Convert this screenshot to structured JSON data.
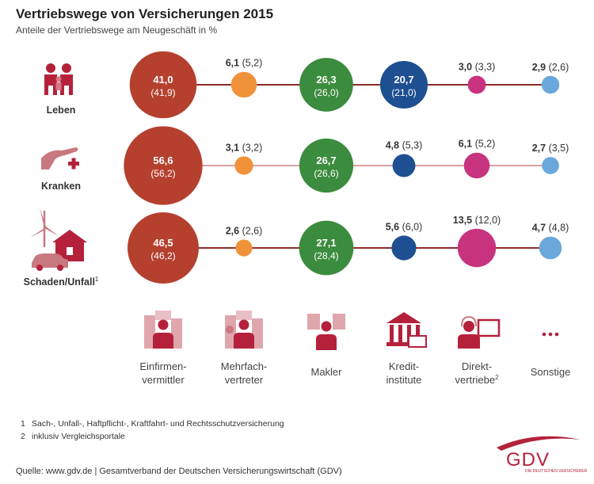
{
  "header": {
    "title": "Vertriebswege von Versicherungen 2015",
    "subtitle": "Anteile der Vertriebswege am Neugeschäft in %"
  },
  "chart_data": {
    "type": "bubble",
    "title": "Vertriebswege von Versicherungen 2015",
    "subtitle": "Anteile der Vertriebswege am Neugeschäft in %",
    "channels": [
      {
        "label": "Einfirmen-\nvermittler",
        "color": "#b5402e",
        "icon": "businesswoman-icon"
      },
      {
        "label": "Mehrfach-\nvertreter",
        "color": "#f0923a",
        "icon": "businessman-buildings-icon"
      },
      {
        "label": "Makler",
        "color": "#3b8c3e",
        "icon": "broker-documents-icon"
      },
      {
        "label": "Kredit-\ninstitute",
        "color": "#1d4f91",
        "icon": "bank-building-icon"
      },
      {
        "label": "Direkt-\nvertriebe",
        "sup": "2",
        "color": "#c7337f",
        "icon": "headset-agent-icon"
      },
      {
        "label": "Sonstige",
        "color": "#6aa8dc",
        "icon": "ellipsis-icon"
      }
    ],
    "series": [
      {
        "name": "Leben",
        "icon": "family-icon",
        "values": [
          41.0,
          6.1,
          26.3,
          20.7,
          3.0,
          2.9
        ],
        "prev": [
          41.9,
          5.2,
          26.0,
          21.0,
          3.3,
          2.6
        ],
        "labels": [
          "41,0",
          "6,1",
          "26,3",
          "20,7",
          "3,0",
          "2,9"
        ],
        "prev_labels": [
          "(41,9)",
          "(5,2)",
          "(26,0)",
          "(21,0)",
          "(3,3)",
          "(2,6)"
        ]
      },
      {
        "name": "Kranken",
        "icon": "hand-cross-icon",
        "values": [
          56.6,
          3.1,
          26.7,
          4.8,
          6.1,
          2.7
        ],
        "prev": [
          56.2,
          3.2,
          26.6,
          5.3,
          5.2,
          3.5
        ],
        "labels": [
          "56,6",
          "3,1",
          "26,7",
          "4,8",
          "6,1",
          "2,7"
        ],
        "prev_labels": [
          "(56,2)",
          "(3,2)",
          "(26,6)",
          "(5,3)",
          "(5,2)",
          "(3,5)"
        ]
      },
      {
        "name": "Schaden/Unfall",
        "sup": "1",
        "icon": "house-car-wind-icon",
        "values": [
          46.5,
          2.6,
          27.1,
          5.6,
          13.5,
          4.7
        ],
        "prev": [
          46.2,
          2.6,
          28.4,
          6.0,
          12.0,
          4.8
        ],
        "labels": [
          "46,5",
          "2,6",
          "27,1",
          "5,6",
          "13,5",
          "4,7"
        ],
        "prev_labels": [
          "(46,2)",
          "(2,6)",
          "(28,4)",
          "(6,0)",
          "(12,0)",
          "(4,8)"
        ]
      }
    ]
  },
  "footnotes": [
    {
      "num": "1",
      "text": "Sach-, Unfall-, Haftpflicht-, Kraftfahrt- und Rechtsschutzversicherung"
    },
    {
      "num": "2",
      "text": "inklusiv Vergleichsportale"
    }
  ],
  "source": "Quelle: www.gdv.de | Gesamtverband der Deutschen Versicherungswirtschaft (GDV)",
  "logo": {
    "text": "GDV",
    "subtext": "DIE DEUTSCHEN VERSICHERER"
  }
}
